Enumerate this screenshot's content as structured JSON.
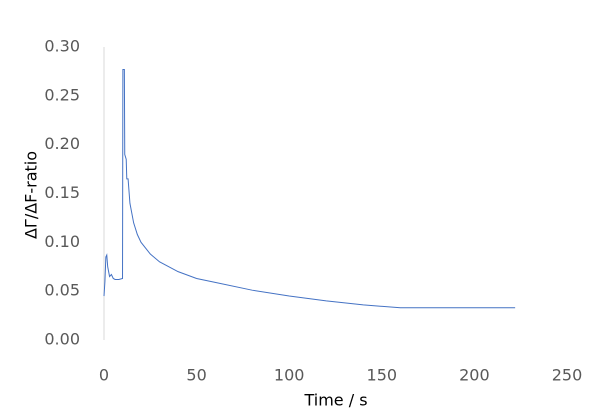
{
  "chart_data": {
    "type": "line",
    "xlabel": "Time / s",
    "ylabel": "ΔΓ/ΔF-ratio",
    "x": [
      0,
      0.5,
      1,
      1.5,
      2,
      3,
      4,
      5,
      6,
      8,
      10,
      10.2,
      11,
      11.2,
      12,
      12.3,
      13,
      14,
      16,
      18,
      20,
      25,
      30,
      40,
      50,
      60,
      80,
      100,
      120,
      140,
      160,
      180,
      200,
      222
    ],
    "values": [
      0.045,
      0.06,
      0.085,
      0.087,
      0.075,
      0.065,
      0.067,
      0.063,
      0.062,
      0.062,
      0.063,
      0.277,
      0.277,
      0.19,
      0.185,
      0.165,
      0.165,
      0.14,
      0.12,
      0.108,
      0.1,
      0.088,
      0.08,
      0.07,
      0.063,
      0.059,
      0.051,
      0.045,
      0.04,
      0.036,
      0.033,
      0.033,
      0.033,
      0.033
    ],
    "color": "#4472c4",
    "xlim": [
      0,
      250
    ],
    "xticks": [
      0,
      50,
      100,
      150,
      200,
      250
    ],
    "ylim": [
      0,
      0.3
    ],
    "yticks": [
      {
        "value": 0,
        "label": "0.00"
      },
      0.05,
      {
        "value": 0.1,
        "label": "0.10"
      },
      0.15,
      {
        "value": 0.2,
        "label": "0.20"
      },
      0.25,
      {
        "value": 0.3,
        "label": "0.30"
      }
    ],
    "grid": false
  }
}
